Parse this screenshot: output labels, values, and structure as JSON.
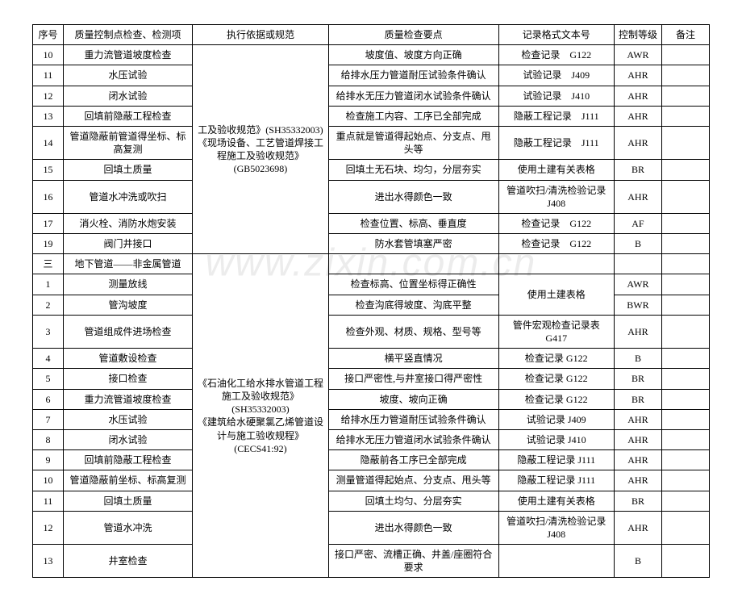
{
  "watermark": "www.zixin.com.cn",
  "headers": {
    "seq": "序号",
    "item": "质量控制点检查、检测项",
    "basis": "执行依据或规范",
    "points": "质量检查要点",
    "format": "记录格式文本号",
    "level": "控制等级",
    "remark": "备注"
  },
  "group1_basis": "工及验收规范》(SH35332003)\n《现场设备、工艺管道焊接工程施工及验收规范》(GB5023698)",
  "group1_rows": [
    {
      "seq": "10",
      "item": "重力流管道坡度检查",
      "points": "坡度值、坡度方向正确",
      "format": "检查记录　G122",
      "level": "AWR"
    },
    {
      "seq": "11",
      "item": "水压试验",
      "points": "给排水压力管道耐压试验条件确认",
      "format": "试验记录　J409",
      "level": "AHR"
    },
    {
      "seq": "12",
      "item": "闭水试验",
      "points": "给排水无压力管道闭水试验条件确认",
      "format": "试验记录　J410",
      "level": "AHR"
    },
    {
      "seq": "13",
      "item": "回填前隐蔽工程检查",
      "points": "检查施工内容、工序已全部完成",
      "format": "隐蔽工程记录　J111",
      "level": "AHR"
    },
    {
      "seq": "14",
      "item": "管道隐蔽前管道得坐标、标高复测",
      "points": "重点就是管道得起始点、分支点、甩头等",
      "format": "隐蔽工程记录　J111",
      "level": "AHR"
    },
    {
      "seq": "15",
      "item": "回填土质量",
      "points": "回填土无石块、均匀，分层夯实",
      "format": "使用土建有关表格",
      "level": "BR"
    },
    {
      "seq": "16",
      "item": "管道水冲洗或吹扫",
      "points": "进出水得颜色一致",
      "format": "管道吹扫/清洗检验记录 J408",
      "level": "AHR"
    },
    {
      "seq": "17",
      "item": "消火栓、消防水炮安装",
      "points": "检查位置、标高、垂直度",
      "format": "检查记录　G122",
      "level": "AF"
    },
    {
      "seq": "19",
      "item": "阀门井接口",
      "points": "防水套管填塞严密",
      "format": "检查记录　G122",
      "level": "B"
    }
  ],
  "section_row": {
    "seq": "三",
    "item": "地下管道——非金属管道"
  },
  "group2_basis": "《石油化工给水排水管道工程施工及验收规范》(SH35332003)\n《建筑给水硬聚氯乙烯管道设计与施工验收规程》(CECS41:92)",
  "group2_rows": [
    {
      "seq": "1",
      "item": "测量放线",
      "points": "检查标高、位置坐标得正确性",
      "format": "使用土建表格",
      "level": "AWR"
    },
    {
      "seq": "2",
      "item": "管沟坡度",
      "points": "检查沟底得坡度、沟底平整",
      "format": "",
      "level": "BWR"
    },
    {
      "seq": "3",
      "item": "管道组成件进场检查",
      "points": "检查外观、材质、规格、型号等",
      "format": "管件宏观检查记录表 G417",
      "level": "AHR"
    },
    {
      "seq": "4",
      "item": "管道敷设检查",
      "points": "横平竖直情况",
      "format": "检查记录 G122",
      "level": "B"
    },
    {
      "seq": "5",
      "item": "接口检查",
      "points": "接口严密性,与井室接口得严密性",
      "format": "检查记录 G122",
      "level": "BR"
    },
    {
      "seq": "6",
      "item": "重力流管道坡度检查",
      "points": "坡度、坡向正确",
      "format": "检查记录 G122",
      "level": "BR"
    },
    {
      "seq": "7",
      "item": "水压试验",
      "points": "给排水压力管道耐压试验条件确认",
      "format": "试验记录 J409",
      "level": "AHR"
    },
    {
      "seq": "8",
      "item": "闭水试验",
      "points": "给排水无压力管道闭水试验条件确认",
      "format": "试验记录 J410",
      "level": "AHR"
    },
    {
      "seq": "9",
      "item": "回填前隐蔽工程检查",
      "points": "隐蔽前各工序已全部完成",
      "format": "隐蔽工程记录 J111",
      "level": "AHR"
    },
    {
      "seq": "10",
      "item": "管道隐蔽前坐标、标高复测",
      "points": "测量管道得起始点、分支点、甩头等",
      "format": "隐蔽工程记录 J111",
      "level": "AHR"
    },
    {
      "seq": "11",
      "item": "回填土质量",
      "points": "回填土均匀、分层夯实",
      "format": "使用土建有关表格",
      "level": "BR"
    },
    {
      "seq": "12",
      "item": "管道水冲洗",
      "points": "进出水得颜色一致",
      "format": "管道吹扫/清洗检验记录 J408",
      "level": "AHR"
    },
    {
      "seq": "13",
      "item": "井室检查",
      "points": "接口严密、流槽正确、井盖/座圈符合要求",
      "format": "",
      "level": "B"
    }
  ]
}
